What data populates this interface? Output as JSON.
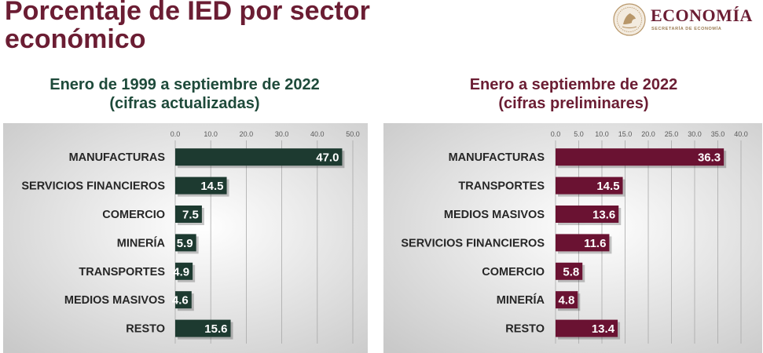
{
  "page": {
    "title": "Porcentaje de IED por sector\neconómico"
  },
  "logo": {
    "name": "ECONOMÍA",
    "subtitle": "SECRETARÍA DE ECONOMÍA",
    "icon": "eagle-seal-icon"
  },
  "colors": {
    "title": "#6b1d33",
    "left_bar": "#1d3a30",
    "right_bar": "#6a1232",
    "left_heading": "#1e4a3a",
    "right_heading": "#6b1d33"
  },
  "chart_data": [
    {
      "type": "bar",
      "orientation": "horizontal",
      "heading_line1": "Enero de 1999 a septiembre de 2022",
      "heading_line2": "(cifras actualizadas)",
      "categories": [
        "MANUFACTURAS",
        "SERVICIOS FINANCIEROS",
        "COMERCIO",
        "MINERÍA",
        "TRANSPORTES",
        "MEDIOS MASIVOS",
        "RESTO"
      ],
      "values": [
        47.0,
        14.5,
        7.5,
        5.9,
        4.9,
        4.6,
        15.6
      ],
      "value_labels": [
        "47.0",
        "14.5",
        "7.5",
        "5.9",
        "4.9",
        "4.6",
        "15.6"
      ],
      "xlim": [
        0,
        50
      ],
      "ticks": [
        "0.0",
        "10.0",
        "20.0",
        "30.0",
        "40.0",
        "50.0"
      ],
      "grid": true,
      "color": "#1d3a30"
    },
    {
      "type": "bar",
      "orientation": "horizontal",
      "heading_line1": "Enero a septiembre de 2022",
      "heading_line2": "(cifras preliminares)",
      "categories": [
        "MANUFACTURAS",
        "TRANSPORTES",
        "MEDIOS MASIVOS",
        "SERVICIOS FINANCIEROS",
        "COMERCIO",
        "MINERÍA",
        "RESTO"
      ],
      "values": [
        36.3,
        14.5,
        13.6,
        11.6,
        5.8,
        4.8,
        13.4
      ],
      "value_labels": [
        "36.3",
        "14.5",
        "13.6",
        "11.6",
        "5.8",
        "4.8",
        "13.4"
      ],
      "xlim": [
        0,
        40
      ],
      "ticks": [
        "0.0",
        "5.0",
        "10.0",
        "15.0",
        "20.0",
        "25.0",
        "30.0",
        "35.0",
        "40.0"
      ],
      "grid": true,
      "color": "#6a1232"
    }
  ]
}
